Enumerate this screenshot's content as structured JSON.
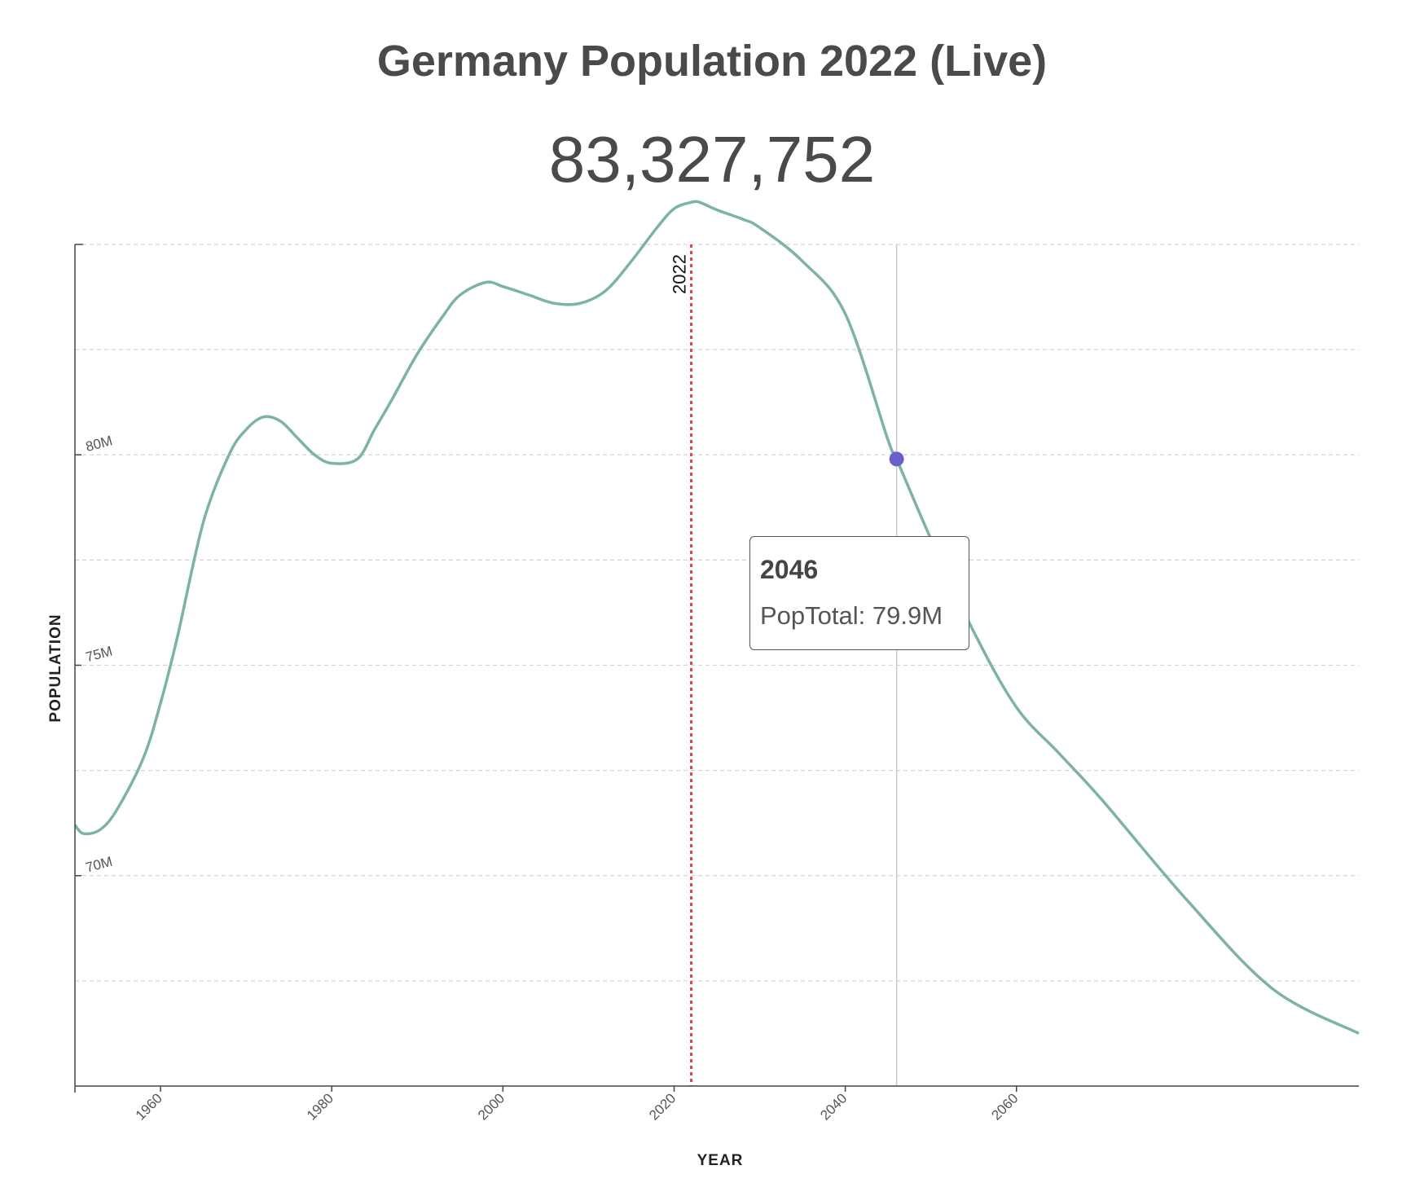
{
  "header": {
    "title": "Germany Population 2022 (Live)",
    "live_count": "83,327,752"
  },
  "tooltip": {
    "year": "2046",
    "label": "PopTotal",
    "separator": ": ",
    "value_text": "79.9M"
  },
  "colors": {
    "line": "#7db3a1",
    "current_year_marker": "#e04a4a",
    "hover_point": "#6a5fc8",
    "gridline": "#d4d4d4",
    "axis": "#444444"
  },
  "chart_data": {
    "type": "line",
    "title": "Germany Population 2022 (Live)",
    "xlabel": "YEAR",
    "ylabel": "POPULATION",
    "xlim": [
      1950,
      2100
    ],
    "ylim": [
      65,
      85
    ],
    "x_ticks": [
      1960,
      1980,
      2000,
      2020,
      2040,
      2060
    ],
    "y_ticks": [
      {
        "value": 70,
        "label": "70M"
      },
      {
        "value": 75,
        "label": "75M"
      },
      {
        "value": 80,
        "label": "80M"
      }
    ],
    "gridlines_y": [
      67.5,
      70,
      72.5,
      75,
      77.5,
      80,
      82.5,
      85
    ],
    "current_year": {
      "x": 2022,
      "label": "2022"
    },
    "hover": {
      "x": 2046,
      "y": 79.9
    },
    "series": [
      {
        "name": "PopTotal",
        "unit": "millions",
        "x": [
          1950,
          1951,
          1953,
          1955,
          1958,
          1960,
          1962,
          1965,
          1968,
          1970,
          1972,
          1974,
          1976,
          1978,
          1980,
          1983,
          1985,
          1987,
          1990,
          1993,
          1995,
          1998,
          2000,
          2003,
          2006,
          2009,
          2012,
          2015,
          2018,
          2020,
          2022,
          2023,
          2025,
          2028,
          2030,
          2035,
          2040,
          2045,
          2046,
          2050,
          2055,
          2060,
          2065,
          2070,
          2080,
          2090,
          2100
        ],
        "y": [
          71.2,
          71.0,
          71.1,
          71.6,
          72.8,
          74.1,
          75.7,
          78.4,
          80.0,
          80.6,
          80.9,
          80.8,
          80.4,
          80.0,
          79.8,
          79.9,
          80.6,
          81.3,
          82.4,
          83.3,
          83.8,
          84.1,
          84.0,
          83.8,
          83.6,
          83.6,
          83.9,
          84.6,
          85.4,
          85.85,
          86.0,
          86.0,
          85.82,
          85.6,
          85.4,
          84.6,
          83.35,
          80.35,
          79.9,
          78.0,
          75.8,
          74.0,
          72.9,
          71.8,
          69.4,
          67.3,
          66.25
        ]
      }
    ]
  }
}
